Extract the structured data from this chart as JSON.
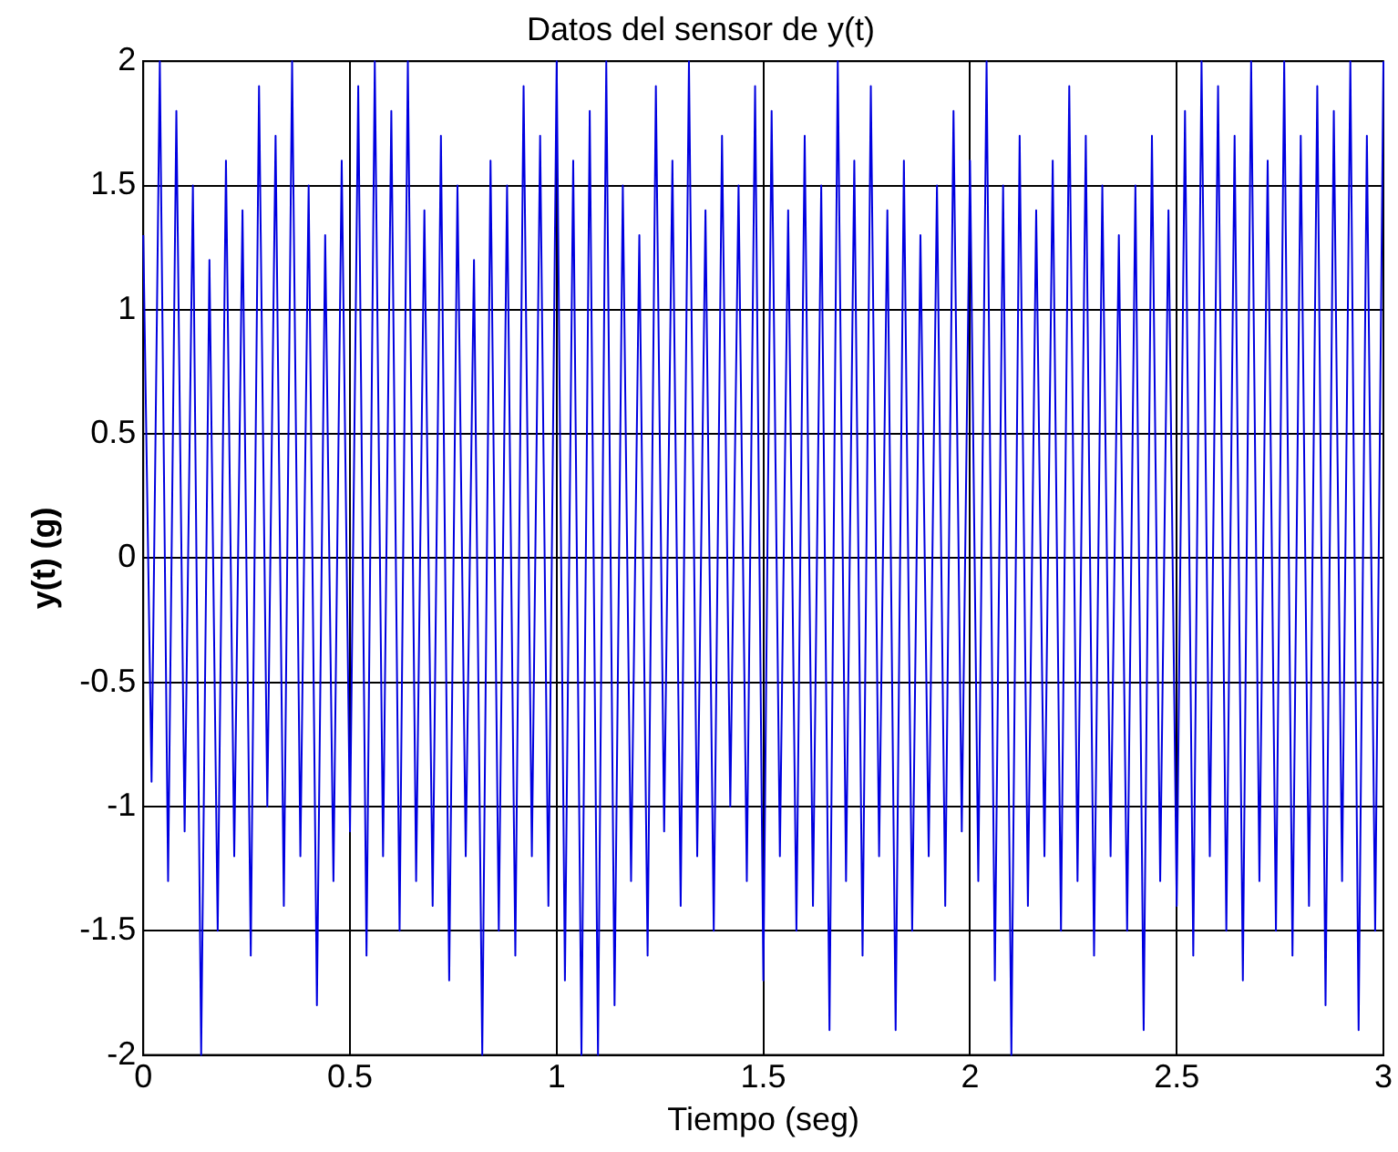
{
  "chart_data": {
    "type": "line",
    "title": "Datos del sensor de y(t)",
    "xlabel": "Tiempo (seg)",
    "ylabel": "y(t) (g)",
    "xlim": [
      0,
      3
    ],
    "xticks": [
      0,
      0.5,
      1,
      1.5,
      2,
      2.5,
      3
    ],
    "ylim": [
      -2,
      2
    ],
    "yticks": [
      -2,
      -1.5,
      -1,
      -0.5,
      0,
      0.5,
      1,
      1.5,
      2
    ],
    "grid": true,
    "marker": "none",
    "line_style": "solid",
    "x": [
      0,
      0.02,
      0.04,
      0.06,
      0.08,
      0.1,
      0.12,
      0.14,
      0.16,
      0.18,
      0.2,
      0.22,
      0.24,
      0.26,
      0.28,
      0.3,
      0.32,
      0.34,
      0.36,
      0.38,
      0.4,
      0.42,
      0.44,
      0.46,
      0.48,
      0.5,
      0.52,
      0.54,
      0.56,
      0.58,
      0.6,
      0.62,
      0.64,
      0.66,
      0.68,
      0.7,
      0.72,
      0.74,
      0.76,
      0.78,
      0.8,
      0.82,
      0.84,
      0.86,
      0.88,
      0.9,
      0.92,
      0.94,
      0.96,
      0.98,
      1,
      1.02,
      1.04,
      1.06,
      1.08,
      1.1,
      1.12,
      1.14,
      1.16,
      1.18,
      1.2,
      1.22,
      1.24,
      1.26,
      1.28,
      1.3,
      1.32,
      1.34,
      1.36,
      1.38,
      1.4,
      1.42,
      1.44,
      1.46,
      1.48,
      1.5,
      1.52,
      1.54,
      1.56,
      1.58,
      1.6,
      1.62,
      1.64,
      1.66,
      1.68,
      1.7,
      1.72,
      1.74,
      1.76,
      1.78,
      1.8,
      1.82,
      1.84,
      1.86,
      1.88,
      1.9,
      1.92,
      1.94,
      1.96,
      1.98,
      2,
      2.02,
      2.04,
      2.06,
      2.08,
      2.1,
      2.12,
      2.14,
      2.16,
      2.18,
      2.2,
      2.22,
      2.24,
      2.26,
      2.28,
      2.3,
      2.32,
      2.34,
      2.36,
      2.38,
      2.4,
      2.42,
      2.44,
      2.46,
      2.48,
      2.5,
      2.52,
      2.54,
      2.56,
      2.58,
      2.6,
      2.62,
      2.64,
      2.66,
      2.68,
      2.7,
      2.72,
      2.74,
      2.76,
      2.78,
      2.8,
      2.82,
      2.84,
      2.86,
      2.88,
      2.9,
      2.92,
      2.94,
      2.96,
      2.98,
      3
    ],
    "series": [
      {
        "color": "#0000e0",
        "values": [
          1.3,
          -0.9,
          2,
          -1.3,
          1.8,
          -1.1,
          1.5,
          -2,
          1.2,
          -1.5,
          1.6,
          -1.2,
          1.4,
          -1.6,
          1.9,
          -1,
          1.7,
          -1.4,
          2,
          -1.2,
          1.5,
          -1.8,
          1.3,
          -1.3,
          1.6,
          -1.1,
          1.9,
          -1.6,
          2,
          -1.2,
          1.8,
          -1.5,
          2,
          -1.3,
          1.4,
          -1.4,
          1.7,
          -1.7,
          1.5,
          -1.2,
          1.2,
          -2,
          1.6,
          -1.5,
          1.5,
          -1.6,
          1.9,
          -1.2,
          1.7,
          -1.4,
          2,
          -1.7,
          1.6,
          -2,
          1.8,
          -2,
          2,
          -1.8,
          1.5,
          -1.3,
          1.3,
          -1.6,
          1.9,
          -1.1,
          1.6,
          -1.4,
          2,
          -1.2,
          1.4,
          -1.5,
          1.7,
          -1,
          1.5,
          -1.3,
          1.9,
          -1.7,
          1.8,
          -1.2,
          1.4,
          -1.5,
          1.7,
          -1.4,
          1.5,
          -1.9,
          2,
          -1.3,
          1.6,
          -1.6,
          1.9,
          -1.2,
          1.4,
          -1.9,
          1.6,
          -1.5,
          1.3,
          -1.2,
          1.5,
          -1.4,
          1.8,
          -1.1,
          1.6,
          -1.3,
          2,
          -1.7,
          1.5,
          -2,
          1.7,
          -1.4,
          1.4,
          -1.2,
          1.6,
          -1.5,
          1.9,
          -1.3,
          1.7,
          -1.6,
          1.5,
          -1.2,
          1.3,
          -1.5,
          1.5,
          -1.9,
          1.7,
          -1.3,
          1.4,
          -1.4,
          1.8,
          -1.6,
          2,
          -1.2,
          1.9,
          -1.5,
          1.7,
          -1.7,
          2,
          -1.3,
          1.6,
          -1.5,
          2,
          -1.6,
          1.7,
          -1.4,
          1.9,
          -1.8,
          1.8,
          -1.3,
          2,
          -1.9,
          1.7,
          -1.5,
          2
        ]
      }
    ]
  }
}
